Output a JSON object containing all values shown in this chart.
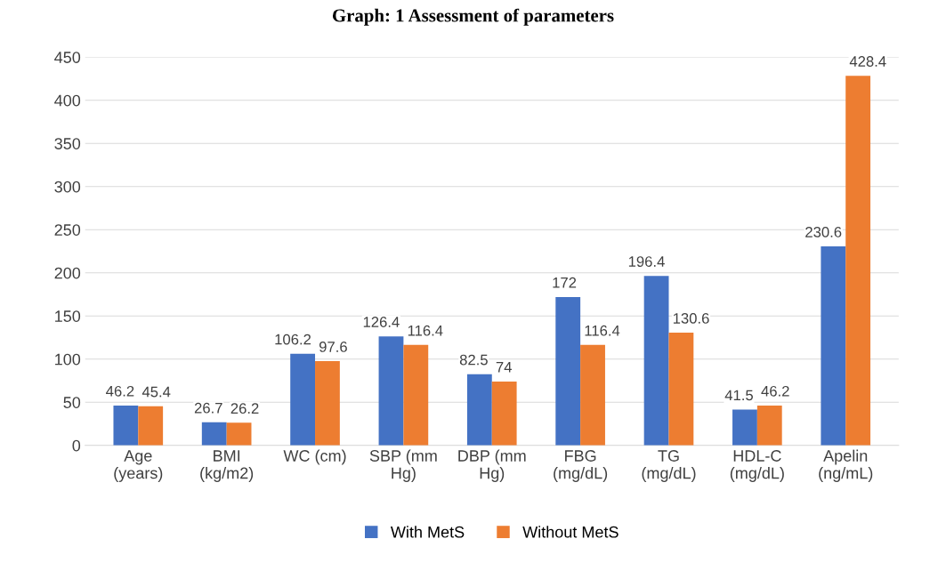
{
  "chart_data": {
    "type": "bar",
    "title": "Graph: 1 Assessment of parameters",
    "categories": [
      "Age\n(years)",
      "BMI\n(kg/m2)",
      "WC (cm)",
      "SBP (mm\nHg)",
      "DBP (mm\nHg)",
      "FBG\n(mg/dL)",
      "TG\n(mg/dL)",
      "HDL-C\n(mg/dL)",
      "Apelin\n(ng/mL)"
    ],
    "series": [
      {
        "name": "With MetS",
        "color": "#4472c4",
        "values": [
          46.2,
          26.7,
          106.2,
          126.4,
          82.5,
          172,
          196.4,
          41.5,
          230.6
        ]
      },
      {
        "name": "Without MetS",
        "color": "#ed7d31",
        "values": [
          45.4,
          26.2,
          97.6,
          116.4,
          74,
          116.4,
          130.6,
          46.2,
          428.4
        ]
      }
    ],
    "ylim": [
      0,
      450
    ],
    "yticks": [
      0,
      50,
      100,
      150,
      200,
      250,
      300,
      350,
      400,
      450
    ],
    "grid": "y",
    "legend": "bottom",
    "data_labels": true
  }
}
